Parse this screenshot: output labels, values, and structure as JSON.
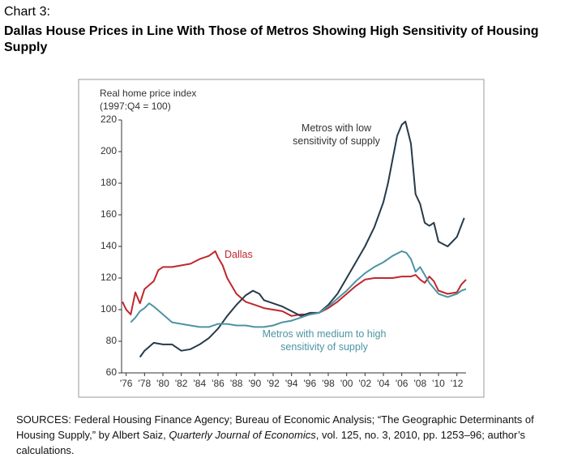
{
  "chart_data": {
    "type": "line",
    "chart_label": "Chart 3:",
    "title": "Dallas House Prices in Line With Those of Metros Showing High Sensitivity of Housing Supply",
    "ylabel": "Real home price index",
    "ylabel_note": "(1997:Q4 = 100)",
    "xlim": [
      1975.5,
      2013
    ],
    "ylim": [
      60,
      220
    ],
    "yticks": [
      60,
      80,
      100,
      120,
      140,
      160,
      180,
      200,
      220
    ],
    "xticks": [
      {
        "value": 1976,
        "label": "'76"
      },
      {
        "value": 1978,
        "label": "'78"
      },
      {
        "value": 1980,
        "label": "'80"
      },
      {
        "value": 1982,
        "label": "'82"
      },
      {
        "value": 1984,
        "label": "'84"
      },
      {
        "value": 1986,
        "label": "'86"
      },
      {
        "value": 1988,
        "label": "'88"
      },
      {
        "value": 1990,
        "label": "'90"
      },
      {
        "value": 1992,
        "label": "'92"
      },
      {
        "value": 1994,
        "label": "'94"
      },
      {
        "value": 1996,
        "label": "'96"
      },
      {
        "value": 1998,
        "label": "'98"
      },
      {
        "value": 2000,
        "label": "'00"
      },
      {
        "value": 2002,
        "label": "'02"
      },
      {
        "value": 2004,
        "label": "'04"
      },
      {
        "value": 2006,
        "label": "'06"
      },
      {
        "value": 2008,
        "label": "'08"
      },
      {
        "value": 2010,
        "label": "'10"
      },
      {
        "value": 2012,
        "label": "'12"
      }
    ],
    "series": [
      {
        "name": "Dallas",
        "color": "#c0272d",
        "x": [
          1975.6,
          1976,
          1976.5,
          1977,
          1977.5,
          1978,
          1979,
          1979.5,
          1980,
          1981,
          1982,
          1983,
          1984,
          1985,
          1985.7,
          1986,
          1986.5,
          1987,
          1988,
          1989,
          1990,
          1991,
          1992,
          1993,
          1994,
          1995,
          1996,
          1997,
          1998,
          1999,
          2000,
          2001,
          2002,
          2003,
          2004,
          2005,
          2006,
          2007,
          2007.5,
          2008,
          2008.5,
          2009,
          2009.5,
          2010,
          2011,
          2012,
          2012.5,
          2013
        ],
        "values": [
          105,
          100,
          97,
          111,
          104,
          113,
          118,
          125,
          127,
          127,
          128,
          129,
          132,
          134,
          137,
          133,
          128,
          120,
          110,
          105,
          103,
          101,
          100,
          99,
          96,
          97,
          97,
          98,
          101,
          105,
          110,
          115,
          119,
          120,
          120,
          120,
          121,
          121,
          122,
          119,
          117,
          121,
          118,
          112,
          110,
          111,
          116,
          119
        ]
      },
      {
        "name": "Metros with low sensitivity of supply",
        "color": "#263a4a",
        "x": [
          1977.5,
          1978,
          1979,
          1980,
          1981,
          1982,
          1983,
          1984,
          1985,
          1986,
          1987,
          1988,
          1989,
          1989.8,
          1990.5,
          1991,
          1992,
          1993,
          1994,
          1995,
          1996,
          1997,
          1998,
          1999,
          2000,
          2001,
          2002,
          2003,
          2004,
          2004.5,
          2005,
          2005.5,
          2006,
          2006.4,
          2007,
          2007.5,
          2008,
          2008.5,
          2009,
          2009.5,
          2010,
          2011,
          2012,
          2012.8
        ],
        "values": [
          70,
          74,
          79,
          78,
          78,
          74,
          75,
          78,
          82,
          88,
          96,
          103,
          109,
          112,
          110,
          106,
          104,
          102,
          99,
          96,
          98,
          98,
          103,
          110,
          120,
          130,
          140,
          152,
          168,
          180,
          195,
          210,
          217,
          219,
          205,
          173,
          167,
          155,
          153,
          155,
          143,
          140,
          146,
          158
        ]
      },
      {
        "name": "Metros with medium to high sensitivity of supply",
        "color": "#4d93a3",
        "x": [
          1976.5,
          1977,
          1977.5,
          1978,
          1978.5,
          1979,
          1980,
          1981,
          1982,
          1983,
          1984,
          1985,
          1986,
          1987,
          1988,
          1989,
          1990,
          1991,
          1992,
          1993,
          1994,
          1995,
          1996,
          1997,
          1998,
          1999,
          2000,
          2001,
          2002,
          2003,
          2004,
          2005,
          2006,
          2006.5,
          2007,
          2007.5,
          2008,
          2009,
          2010,
          2011,
          2012,
          2012.5,
          2013
        ],
        "values": [
          92,
          95,
          99,
          101,
          104,
          102,
          97,
          92,
          91,
          90,
          89,
          89,
          91,
          91,
          90,
          90,
          89,
          89,
          90,
          92,
          93,
          95,
          97,
          98,
          102,
          107,
          112,
          118,
          123,
          127,
          130,
          134,
          137,
          136,
          132,
          124,
          127,
          117,
          110,
          108,
          110,
          112,
          113
        ]
      }
    ],
    "source": [
      "SOURCES: Federal Housing Finance Agency; Bureau of Economic Analysis; “The Geographic Determinants of Housing Supply,” by Albert Saiz, ",
      "Quarterly Journal of Economics",
      ", vol. 125, no. 3, 2010, pp. 1253–96; author’s calculations."
    ]
  }
}
